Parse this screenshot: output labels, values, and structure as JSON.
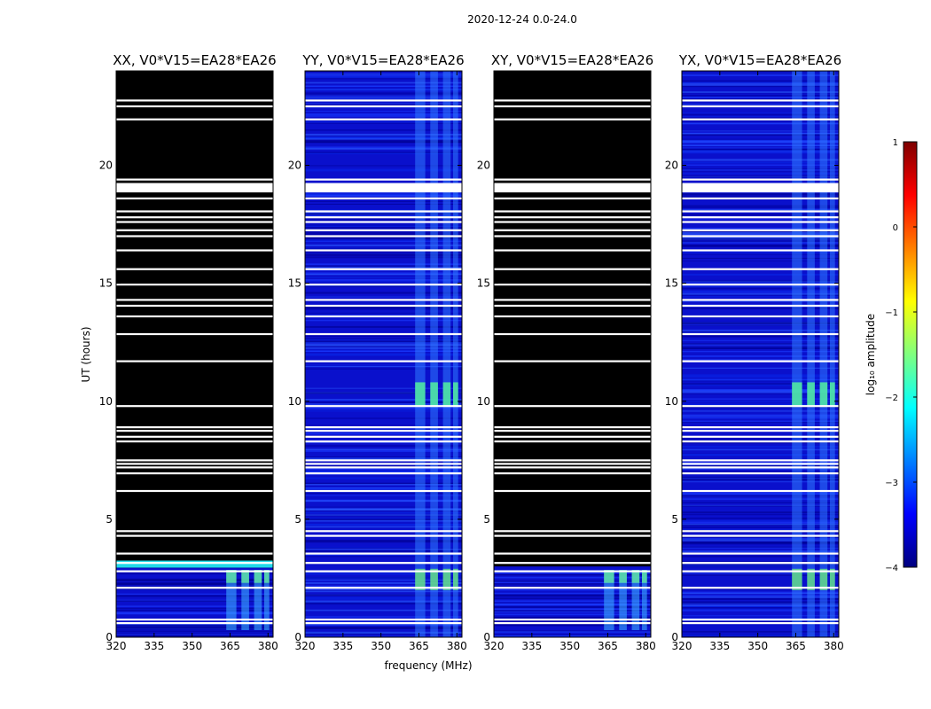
{
  "figure": {
    "suptitle": "2020-12-24 0.0-24.0"
  },
  "chart_data": {
    "type": "heatmap",
    "xlabel": "frequency (MHz)",
    "ylabel": "UT (hours)",
    "xlim": [
      320,
      382
    ],
    "ylim": [
      0,
      24
    ],
    "xticks": [
      320,
      335,
      350,
      365,
      380
    ],
    "yticks": [
      0,
      5,
      10,
      15,
      20
    ],
    "panels": [
      {
        "title": "XX, V0*V15=EA28*EA26",
        "mode": "xx"
      },
      {
        "title": "YY, V0*V15=EA28*EA26",
        "mode": "full"
      },
      {
        "title": "XY, V0*V15=EA28*EA26",
        "mode": "xy"
      },
      {
        "title": "YX, V0*V15=EA28*EA26",
        "mode": "full"
      }
    ],
    "flagged_ut_hours": [
      0.6,
      0.75,
      2.1,
      2.8,
      3.15,
      3.55,
      4.3,
      4.5,
      6.2,
      6.95,
      7.2,
      7.35,
      7.5,
      8.3,
      8.5,
      8.75,
      8.9,
      9.8,
      11.7,
      12.85,
      13.6,
      14.05,
      14.3,
      14.95,
      15.6,
      16.4,
      17.0,
      17.25,
      17.6,
      17.8,
      18.05,
      18.6,
      19.4,
      21.95,
      22.5,
      22.75
    ],
    "wide_flagged_ut_ranges": [
      [
        18.85,
        19.25
      ]
    ],
    "xx_xy_data_ut_range": [
      0,
      3.0
    ],
    "xx_overlay_band_ut": [
      2.95,
      3.25
    ],
    "rfi_bands_mhz": [
      [
        363.5,
        367.5
      ],
      [
        369.5,
        372.5
      ],
      [
        374.5,
        377.5
      ],
      [
        378.5,
        380.5
      ]
    ],
    "rfi_peak_ut_range": [
      9.8,
      10.8
    ],
    "colorbar": {
      "label": "log₁₀ amplitude",
      "min": -4,
      "max": 1,
      "ticks": [
        {
          "value": 1,
          "label": "1"
        },
        {
          "value": 0,
          "label": "0"
        },
        {
          "value": -1,
          "label": "−1"
        },
        {
          "value": -2,
          "label": "−2"
        },
        {
          "value": -3,
          "label": "−3"
        },
        {
          "value": -4,
          "label": "−4"
        }
      ],
      "colormap": "jet",
      "jet_stops": [
        "#00007f",
        "#0000ff",
        "#007fff",
        "#00ffff",
        "#7fff7f",
        "#ffff00",
        "#ff7f00",
        "#ff0000",
        "#7f0000"
      ]
    }
  }
}
